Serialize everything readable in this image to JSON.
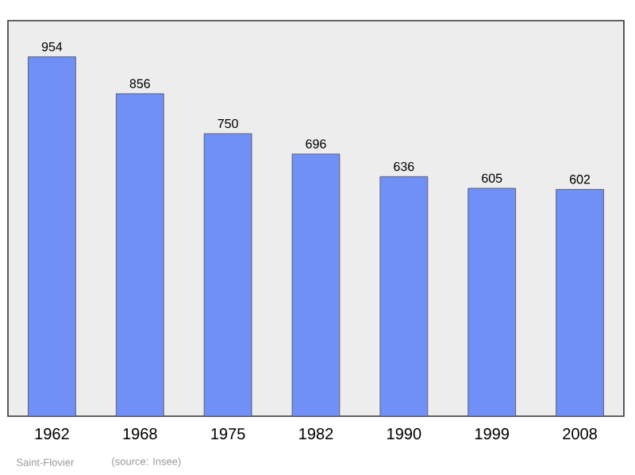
{
  "chart_data": {
    "type": "bar",
    "categories": [
      "1962",
      "1968",
      "1975",
      "1982",
      "1990",
      "1999",
      "2008"
    ],
    "values": [
      954,
      856,
      750,
      696,
      636,
      605,
      602
    ],
    "color": "#7090f8",
    "ylim": [
      0,
      1050
    ],
    "data_labels": true,
    "tick_labels": "x",
    "grid": false,
    "annotations": [
      "Saint-Flovier",
      "(source: Insee)"
    ]
  }
}
